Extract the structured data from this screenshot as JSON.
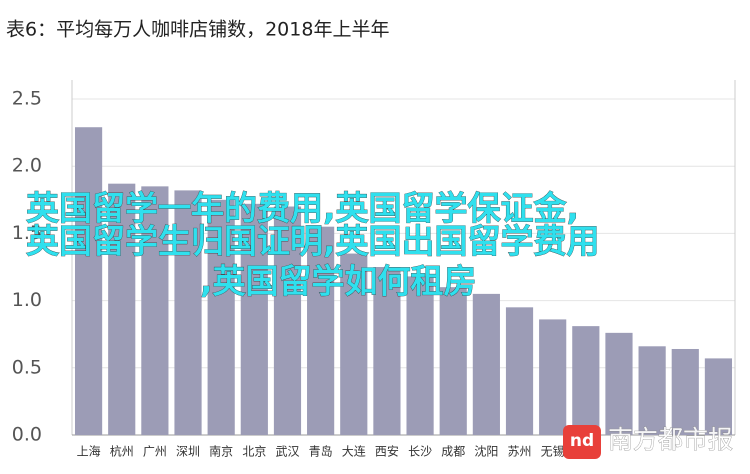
{
  "chart_data": {
    "type": "bar",
    "title": "表6：平均每万人咖啡店铺数，2018年上半年",
    "categories": [
      "上海",
      "杭州",
      "广州",
      "深圳",
      "南京",
      "北京",
      "武汉",
      "青岛",
      "大连",
      "西安",
      "长沙",
      "成都",
      "沈阳",
      "苏州",
      "无锡",
      null,
      null,
      null,
      null,
      null
    ],
    "values": [
      2.29,
      1.87,
      1.85,
      1.82,
      1.75,
      1.72,
      1.7,
      1.55,
      1.35,
      1.25,
      1.18,
      1.1,
      1.05,
      0.95,
      0.86,
      0.81,
      0.76,
      0.66,
      0.64,
      0.57
    ],
    "color": "#9c9cb6",
    "ylim": [
      0,
      2.5
    ],
    "yticks": [
      {
        "value": 0,
        "label": "0.0"
      },
      0.5,
      {
        "value": 1,
        "label": "1.0"
      },
      1.5,
      {
        "value": 2,
        "label": "2.0"
      },
      2.5
    ],
    "grid": true
  },
  "overlay": {
    "watermark": [
      "英国留学一年的费用,英国留学保证金,",
      "英国留学生归国证明,英国出国留学费用",
      ",英国留学如何租房"
    ],
    "logo": "nd",
    "logo_text": "南方都市报"
  }
}
